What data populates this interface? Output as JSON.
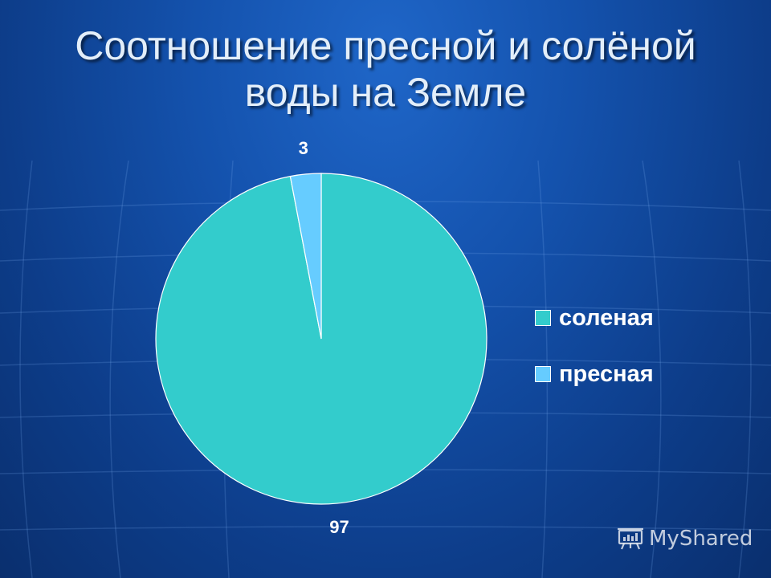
{
  "slide": {
    "title_line1": "Соотношение пресной и солёной",
    "title_line2": "воды на Земле",
    "watermark": "MyShared"
  },
  "colors": {
    "salt": "#33cccc",
    "fresh": "#66ccff",
    "slice_border": "#ffffff"
  },
  "chart_data": {
    "type": "pie",
    "title": "Соотношение пресной и солёной воды на Земле",
    "categories": [
      "соленая",
      "пресная"
    ],
    "values": [
      97,
      3
    ],
    "data_labels": [
      "97",
      "3"
    ],
    "legend_position": "right"
  }
}
